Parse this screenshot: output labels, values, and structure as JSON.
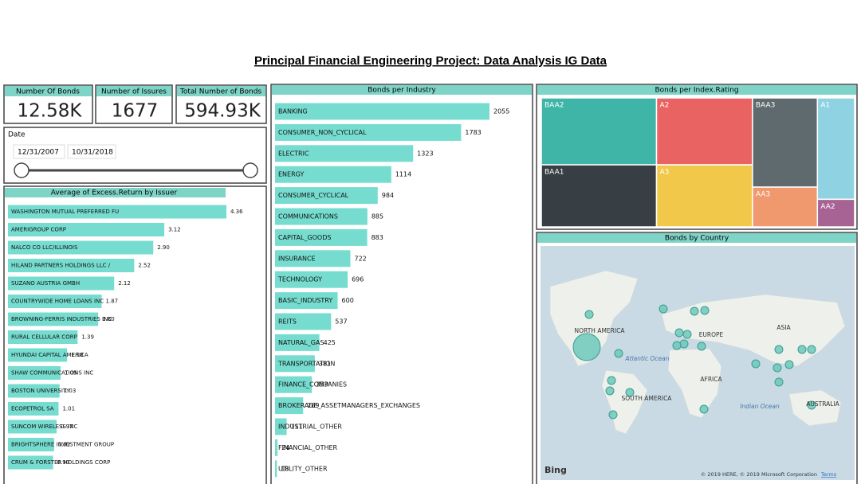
{
  "title": "Principal Financial Engineering Project: Data Analysis IG Data",
  "cards": [
    {
      "label": "Number  Of Bonds",
      "value": "12.58K"
    },
    {
      "label": "Number of  Issures",
      "value": "1677"
    },
    {
      "label": "Total Number of Bonds",
      "value": "594.93K"
    }
  ],
  "date_filter": {
    "label": "Date",
    "start": "12/31/2007",
    "end": "10/31/2018"
  },
  "chart_data": [
    {
      "type": "bar",
      "orientation": "horizontal",
      "title": "Average of Excess.Return by Issuer",
      "categories": [
        "WASHINGTON MUTUAL PREFERRED FU",
        "AMERIGROUP CORP",
        "NALCO CO LLC/ILLINOIS",
        "HILAND PARTNERS HOLDINGS LLC /",
        "SUZANO AUSTRIA GMBH",
        "COUNTRYWIDE HOME LOANS INC",
        "BROWNING-FERRIS INDUSTRIES INC",
        "RURAL CELLULAR CORP",
        "HYUNDAI CAPITAL AMERICA",
        "SHAW COMMUNICATIONS INC",
        "BOSTON UNIVERSITY",
        "ECOPETROL SA",
        "SUNCOM WIRELESS INC",
        "BRIGHTSPHERE INVESTMENT GROUP",
        "CRUM & FORSTER HOLDINGS CORP"
      ],
      "values": [
        4.36,
        3.12,
        2.9,
        2.52,
        2.12,
        1.87,
        1.8,
        1.39,
        1.18,
        1.05,
        1.03,
        1.01,
        0.97,
        0.92,
        0.9
      ],
      "value_labels": [
        "4.36",
        "3.12",
        "2.90",
        "2.52",
        "2.12",
        "1.87",
        "1.80",
        "1.39",
        "1.18",
        "1.05",
        "1.03",
        "1.01",
        "0.97",
        "0.92",
        "0.90"
      ],
      "color": "#76dccf"
    },
    {
      "type": "bar",
      "orientation": "horizontal",
      "title": "Bonds per Industry",
      "categories": [
        "BANKING",
        "CONSUMER_NON_CYCLICAL",
        "ELECTRIC",
        "ENERGY",
        "CONSUMER_CYCLICAL",
        "COMMUNICATIONS",
        "CAPITAL_GOODS",
        "INSURANCE",
        "TECHNOLOGY",
        "BASIC_INDUSTRY",
        "REITS",
        "NATURAL_GAS",
        "TRANSPORTATION",
        "FINANCE_COMPANIES",
        "BROKERAGE_ASSETMANAGERS_EXCHANGES",
        "INDUSTRIAL_OTHER",
        "FINANCIAL_OTHER",
        "UTILITY_OTHER"
      ],
      "values": [
        2055,
        1783,
        1323,
        1114,
        984,
        885,
        883,
        722,
        696,
        600,
        537,
        425,
        381,
        353,
        269,
        111,
        24,
        18
      ],
      "color": "#76dccf"
    },
    {
      "type": "treemap",
      "title": "Bonds per Index.Rating",
      "categories": [
        "BAA2",
        "BAA1",
        "A2",
        "A3",
        "BAA3",
        "AA3",
        "A1",
        "AA2"
      ],
      "values": [
        2330,
        2160,
        1940,
        1800,
        1750,
        780,
        1140,
        310
      ],
      "colors": [
        "#3fb5a8",
        "#373f44",
        "#ea6363",
        "#f2c84b",
        "#5f6a6e",
        "#f0986e",
        "#8fd3e3",
        "#a76394"
      ]
    },
    {
      "type": "map",
      "title": "Bonds by Country",
      "labels": [
        "NORTH AMERICA",
        "EUROPE",
        "ASIA",
        "Atlantic Ocean",
        "AFRICA",
        "SOUTH AMERICA",
        "Indian Ocean",
        "AUSTRALIA"
      ],
      "logo": "Bing",
      "attribution": "© 2019 HERE, © 2019 Microsoft Corporation",
      "link": "Terms"
    }
  ]
}
